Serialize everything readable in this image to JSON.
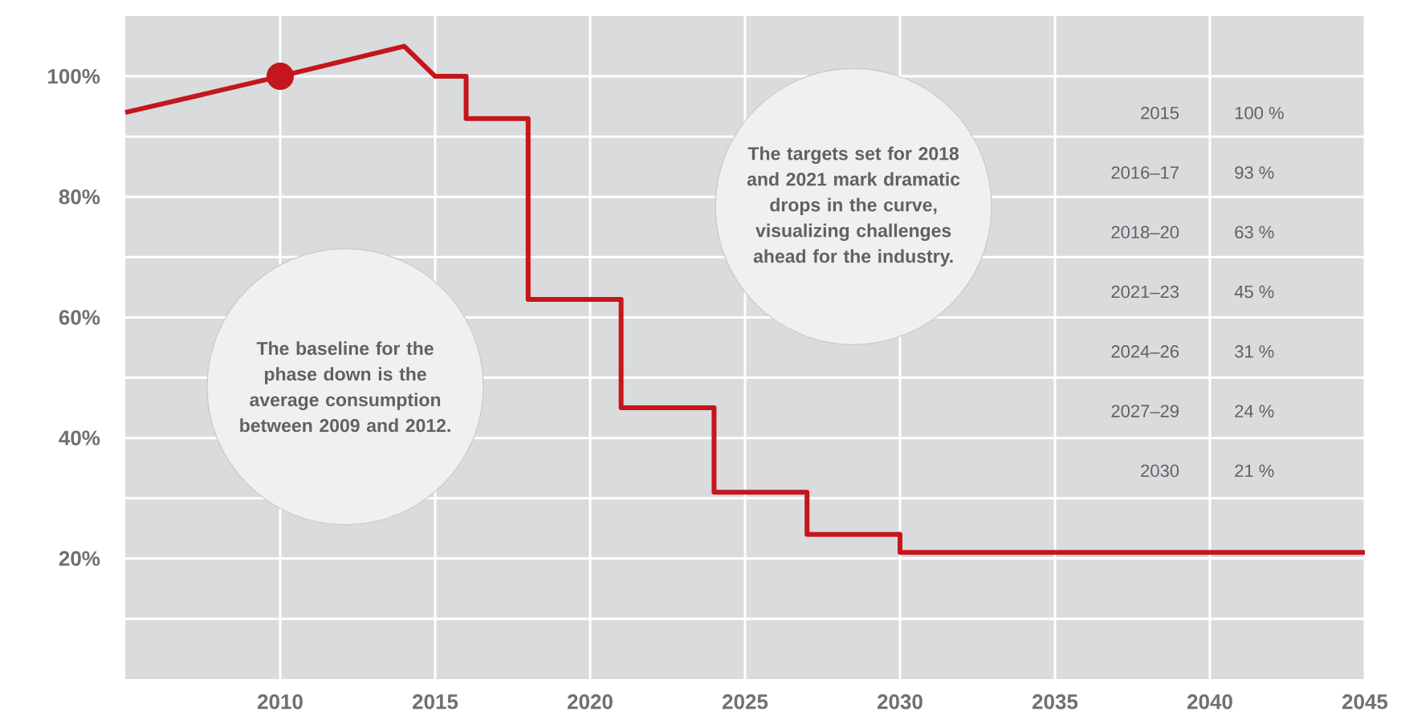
{
  "chart_data": {
    "type": "line",
    "xlim": [
      2005,
      2045
    ],
    "ylim": [
      0,
      110
    ],
    "xticks": [
      2010,
      2015,
      2020,
      2025,
      2030,
      2035,
      2040,
      2045
    ],
    "yticks": [
      {
        "value": 10,
        "label": null
      },
      {
        "value": 20,
        "label": "20%"
      },
      {
        "value": 30,
        "label": null
      },
      {
        "value": 40,
        "label": "40%"
      },
      {
        "value": 50,
        "label": null
      },
      {
        "value": 60,
        "label": "60%"
      },
      {
        "value": 70,
        "label": null
      },
      {
        "value": 80,
        "label": "80%"
      },
      {
        "value": 90,
        "label": null
      },
      {
        "value": 100,
        "label": "100%"
      }
    ],
    "grid": true,
    "series": [
      {
        "color": "#c4161c",
        "marker": "none",
        "line_style": "solid",
        "x": [
          2005,
          2010,
          2014,
          2015,
          2016,
          2016,
          2018,
          2018,
          2021,
          2021,
          2024,
          2024,
          2027,
          2027,
          2030,
          2030,
          2045
        ],
        "values": [
          94,
          100,
          105,
          100,
          100,
          93,
          93,
          63,
          63,
          45,
          45,
          31,
          31,
          24,
          24,
          21,
          21
        ]
      },
      {
        "type": "scatter",
        "color": "#c4161c",
        "marker": "circle",
        "x": [
          2010
        ],
        "values": [
          100
        ]
      }
    ],
    "annotations": [
      "The baseline for the phase down is the average consumption between 2009 and 2012.",
      "The targets set for 2018 and 2021 mark dramatic drops in the curve, visualizing challenges ahead for the industry.",
      "2015",
      "100 %",
      "2016–17",
      "93 %",
      "2018–20",
      "63 %",
      "2021–23",
      "45 %",
      "2024–26",
      "31 %",
      "2027–29",
      "24 %",
      "2030",
      "21 %"
    ]
  }
}
